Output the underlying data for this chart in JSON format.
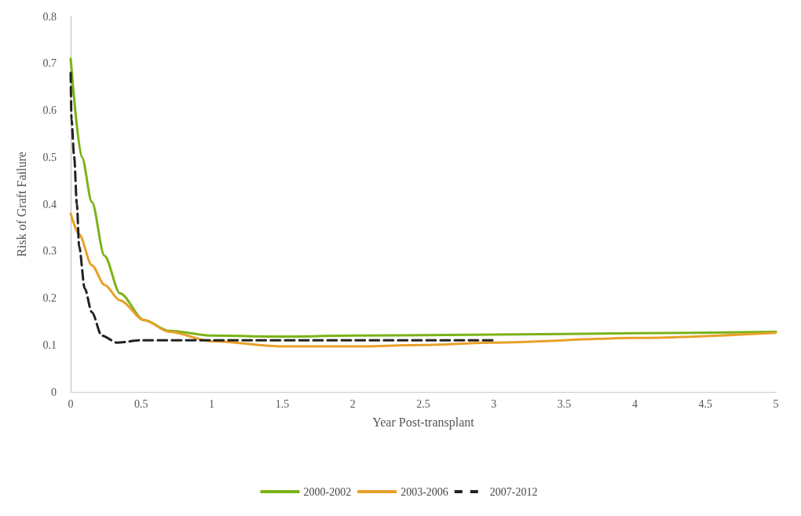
{
  "chart_data": {
    "type": "line",
    "xlabel": "Year Post-transplant",
    "ylabel": "Risk of Graft Failure",
    "xlim": [
      0,
      5
    ],
    "xticks": [
      0,
      0.5,
      1,
      1.5,
      2,
      2.5,
      3,
      3.5,
      4,
      4.5,
      5
    ],
    "ylim": [
      0,
      0.8
    ],
    "yticks": [
      0,
      0.1,
      0.2,
      0.3,
      0.4,
      0.5,
      0.6,
      0.7,
      0.8
    ],
    "grid": false,
    "legend": "bottom",
    "marker": "none",
    "series": [
      {
        "name": "2000-2002",
        "color": "#7ab317",
        "line_style": "solid",
        "x": [
          0,
          0.08,
          0.15,
          0.24,
          0.35,
          0.52,
          0.7,
          1,
          1.5,
          2,
          3,
          4,
          5
        ],
        "values": [
          0.71,
          0.5,
          0.405,
          0.29,
          0.21,
          0.153,
          0.13,
          0.12,
          0.118,
          0.12,
          0.122,
          0.125,
          0.128
        ]
      },
      {
        "name": "2003-2006",
        "color": "#e8a02a",
        "line_style": "solid",
        "x": [
          0,
          0.06,
          0.15,
          0.24,
          0.35,
          0.52,
          0.7,
          1,
          1.5,
          2,
          2.5,
          3,
          4,
          5
        ],
        "values": [
          0.38,
          0.336,
          0.27,
          0.228,
          0.195,
          0.153,
          0.128,
          0.108,
          0.097,
          0.097,
          0.1,
          0.105,
          0.115,
          0.126
        ]
      },
      {
        "name": "2007-2012",
        "color": "#222222",
        "line_style": "dashed",
        "x": [
          0,
          0.006,
          0.025,
          0.044,
          0.06,
          0.1,
          0.15,
          0.22,
          0.33,
          0.5,
          1,
          2,
          3
        ],
        "values": [
          0.68,
          0.58,
          0.5,
          0.4,
          0.31,
          0.22,
          0.17,
          0.12,
          0.105,
          0.11,
          0.11,
          0.11,
          0.11
        ]
      }
    ]
  }
}
